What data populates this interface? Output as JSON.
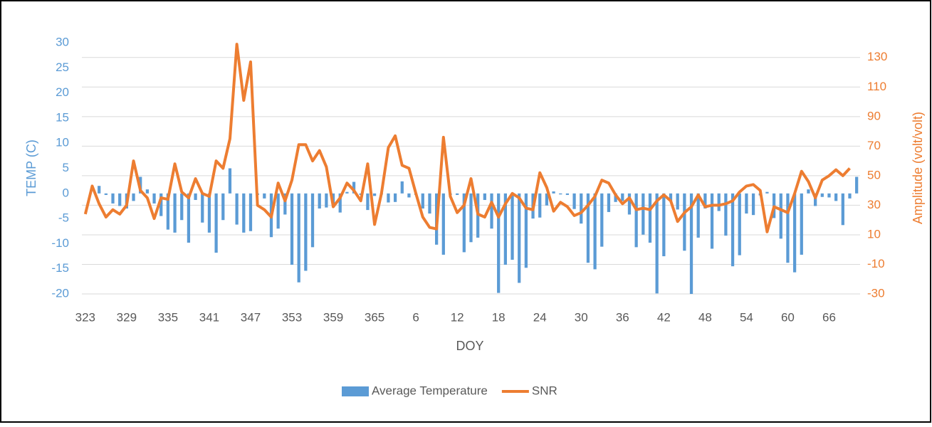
{
  "chart_data": {
    "type": "bar-line",
    "x_label": "DOY",
    "y_label": "TEMP (C)",
    "y2_label": "Amplitude (volt/volt)",
    "categories": [
      "323",
      null,
      null,
      null,
      null,
      null,
      "329",
      null,
      null,
      null,
      null,
      null,
      "335",
      null,
      null,
      null,
      null,
      null,
      "341",
      null,
      null,
      null,
      null,
      null,
      "347",
      null,
      null,
      null,
      null,
      null,
      "353",
      null,
      null,
      null,
      null,
      null,
      "359",
      null,
      null,
      null,
      null,
      null,
      "365",
      null,
      null,
      null,
      null,
      null,
      "6",
      null,
      null,
      null,
      null,
      null,
      "12",
      null,
      null,
      null,
      null,
      null,
      "18",
      null,
      null,
      null,
      null,
      null,
      "24",
      null,
      null,
      null,
      null,
      null,
      "30",
      null,
      null,
      null,
      null,
      null,
      "36",
      null,
      null,
      null,
      null,
      null,
      "42",
      null,
      null,
      null,
      null,
      null,
      "48",
      null,
      null,
      null,
      null,
      null,
      "54",
      null,
      null,
      null,
      null,
      null,
      "60",
      null,
      null,
      null,
      null,
      null,
      "66",
      null,
      null,
      null,
      null
    ],
    "series": [
      {
        "name": "Average Temperature",
        "type": "bar",
        "color": "#5b9bd5",
        "values": [
          0,
          0,
          1.5,
          -0.3,
          -2,
          -2.5,
          -3,
          -1.5,
          3.3,
          0.8,
          -2,
          -4.5,
          -7.2,
          -7.8,
          -5.3,
          -9.8,
          -1.3,
          -5.8,
          -7.8,
          -11.8,
          -5.3,
          5,
          -6.2,
          -7.8,
          -7.5,
          -0.3,
          -1,
          -8.7,
          -7,
          -4.2,
          -14.2,
          -17.7,
          -15.4,
          -10.7,
          -3,
          -2.8,
          -2.7,
          -3.8,
          0.3,
          2.3,
          -0.3,
          -3.3,
          -0.5,
          -0.2,
          -1.8,
          -1.7,
          2.4,
          -0.8,
          -0.3,
          -3,
          -4,
          -10.2,
          -12.2,
          -0.3,
          -0.3,
          -11.7,
          -9.7,
          -8.8,
          -1.3,
          -7,
          -19.8,
          -14.2,
          -13.2,
          -17.8,
          -14.8,
          -5,
          -4.8,
          -2.4,
          0.4,
          -0.2,
          -0.3,
          -3.1,
          -6,
          -13.8,
          -15.1,
          -10.6,
          -3.7,
          -1.7,
          -1.5,
          -4.2,
          -10.7,
          -8.2,
          -9.8,
          -19.9,
          -12.5,
          -1.5,
          -3.2,
          -11.4,
          -20,
          -8.8,
          -3,
          -11,
          -3.5,
          -8.4,
          -14.5,
          -12.3,
          -4,
          -4.3,
          -0.4,
          0.3,
          -4.9,
          -9,
          -13.8,
          -15.7,
          -12.2,
          0.8,
          -2.5,
          -0.7,
          -0.8,
          -1.5,
          -6.3,
          -1,
          3.3
        ]
      },
      {
        "name": "SNR",
        "type": "line",
        "axis": "y2",
        "color": "#ed7d31",
        "values": [
          24,
          43,
          31,
          22,
          27,
          24,
          30,
          60,
          40,
          35,
          21,
          35,
          34,
          58,
          39,
          35,
          48,
          38,
          36,
          60,
          55,
          75,
          139,
          101,
          127,
          30,
          27,
          22,
          45,
          33,
          47,
          71,
          71,
          60,
          67,
          56,
          29,
          35,
          45,
          40,
          33,
          58,
          17,
          38,
          69,
          77,
          57,
          55,
          38,
          22,
          15,
          14,
          76,
          36,
          25,
          30,
          48,
          24,
          22,
          32,
          22,
          31,
          38,
          35,
          28,
          27,
          52,
          42,
          26,
          32,
          29,
          23,
          25,
          30,
          36,
          47,
          45,
          37,
          31,
          35,
          27,
          28,
          27,
          33,
          37,
          33,
          19,
          25,
          29,
          37,
          29,
          30,
          30,
          31,
          33,
          39,
          43,
          44,
          40,
          12,
          29,
          27,
          25,
          38,
          53,
          46,
          35,
          47,
          50,
          54,
          50,
          55,
          null
        ]
      }
    ],
    "ylim": [
      -20,
      30
    ],
    "yticks": [
      -20,
      -15,
      -10,
      -5,
      0,
      5,
      10,
      15,
      20,
      25,
      30
    ],
    "y2lim": [
      -30,
      140
    ],
    "y2ticks": [
      -30,
      -10,
      10,
      30,
      50,
      70,
      90,
      110,
      130
    ],
    "grid": true,
    "legend": "bottom"
  }
}
